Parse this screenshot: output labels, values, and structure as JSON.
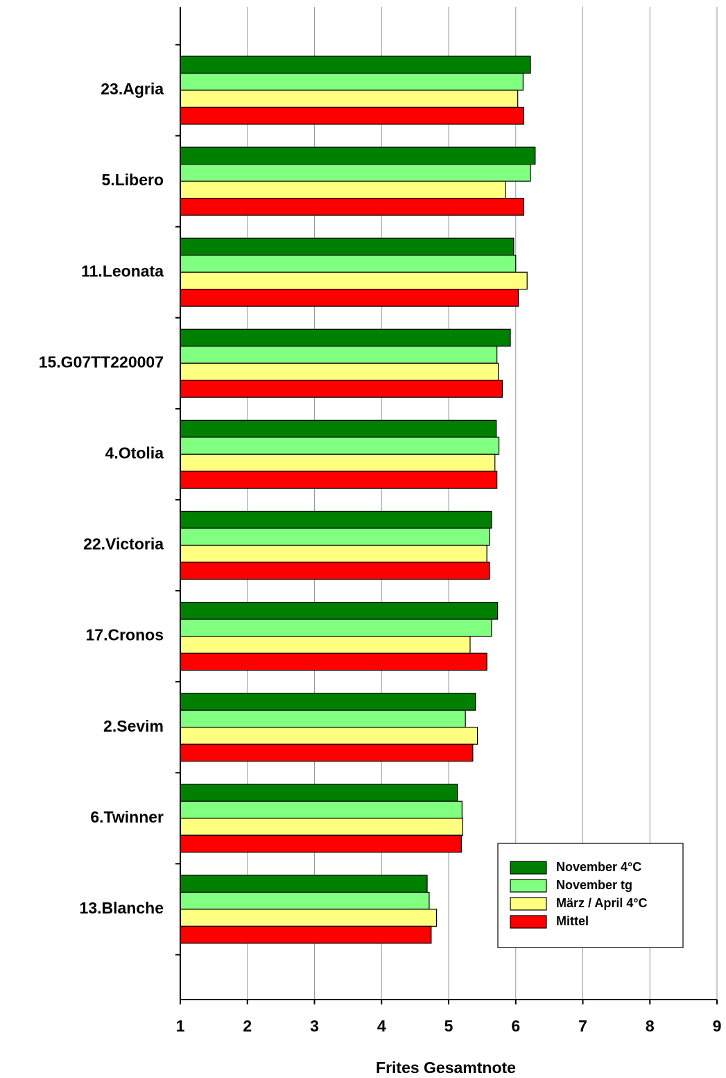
{
  "chart_data": {
    "type": "bar",
    "orientation": "horizontal",
    "x_label": "Frites Gesamtnote",
    "categories": [
      "23.Agria",
      "5.Libero",
      "11.Leonata",
      "15.G07TT220007",
      "4.Otolia",
      "22.Victoria",
      "17.Cronos",
      "2.Sevim",
      "6.Twinner",
      "13.Blanche"
    ],
    "series": [
      {
        "name": "November 4°C",
        "color": "#008000",
        "values": [
          6.22,
          6.29,
          5.97,
          5.92,
          5.71,
          5.64,
          5.73,
          5.4,
          5.13,
          4.68
        ]
      },
      {
        "name": "November tg",
        "color": "#80ff80",
        "values": [
          6.11,
          6.22,
          6.0,
          5.72,
          5.75,
          5.61,
          5.64,
          5.25,
          5.2,
          4.71
        ]
      },
      {
        "name": "März / April 4°C",
        "color": "#ffff80",
        "values": [
          6.03,
          5.85,
          6.17,
          5.74,
          5.69,
          5.57,
          5.32,
          5.43,
          5.21,
          4.82
        ]
      },
      {
        "name": "Mittel",
        "color": "#ff0000",
        "values": [
          6.12,
          6.12,
          6.04,
          5.8,
          5.72,
          5.61,
          5.57,
          5.36,
          5.19,
          4.74
        ]
      }
    ],
    "xlim": [
      1,
      9
    ],
    "xticks": [
      1,
      2,
      3,
      4,
      5,
      6,
      7,
      8,
      9
    ],
    "grid": true,
    "legend": "lower right"
  }
}
